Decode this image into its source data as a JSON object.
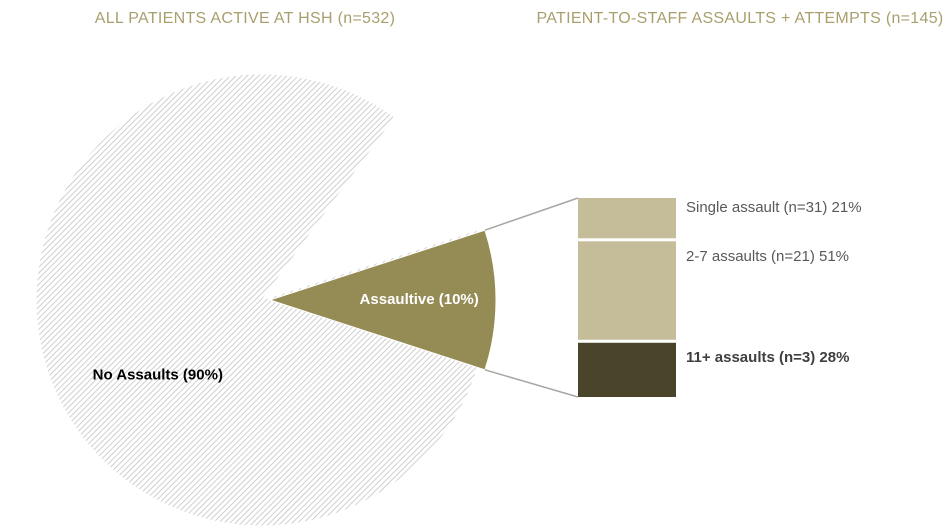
{
  "chart_data": [
    {
      "type": "pie",
      "title": "ALL PATIENTS ACTIVE AT HSH (n=532)",
      "categories": [
        "No Assaults (90%)",
        "Assaultive (10%)"
      ],
      "values": [
        90,
        10
      ],
      "colors": [
        "hatch",
        "#958b55"
      ]
    },
    {
      "type": "stacked-bar",
      "title": "PATIENT-TO-STAFF ASSAULTS + ATTEMPTS (n=145)",
      "categories": [
        "Single assault (n=31)",
        "2-7 assaults (n=21)",
        "11+ assaults (n=3)"
      ],
      "values": [
        21,
        51,
        28
      ],
      "value_labels": [
        "21%",
        "51%",
        "28%"
      ],
      "colors": [
        "#c5bd99",
        "#c5bd99",
        "#4a442b"
      ]
    }
  ]
}
